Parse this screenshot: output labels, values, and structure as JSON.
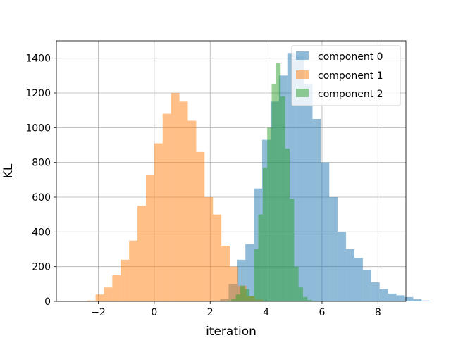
{
  "chart_data": {
    "type": "histogram",
    "title": "",
    "xlabel": "iteration",
    "ylabel": "KL",
    "xlim": [
      -3.5,
      9.0
    ],
    "ylim": [
      0,
      1500
    ],
    "grid": true,
    "legend_position": "top-right",
    "xticks": [
      -2,
      0,
      2,
      4,
      6,
      8
    ],
    "xtick_labels": [
      "−2",
      "0",
      "2",
      "4",
      "6",
      "8"
    ],
    "yticks": [
      0,
      200,
      400,
      600,
      800,
      1000,
      1200,
      1400
    ],
    "ytick_labels": [
      "0",
      "200",
      "400",
      "600",
      "800",
      "1000",
      "1200",
      "1400"
    ],
    "series": [
      {
        "name": "component 0",
        "color": "#1f77b4",
        "alpha": 0.5,
        "bin_start": 2.06,
        "bin_width": 0.3,
        "counts": [
          5,
          15,
          100,
          240,
          330,
          650,
          930,
          1150,
          1300,
          1430,
          1410,
          1250,
          1050,
          800,
          600,
          400,
          300,
          250,
          180,
          110,
          70,
          45,
          35,
          25,
          12,
          5
        ]
      },
      {
        "name": "component 1",
        "color": "#ff7f0e",
        "alpha": 0.5,
        "bin_start": -2.4,
        "bin_width": 0.3,
        "counts": [
          5,
          40,
          80,
          150,
          240,
          350,
          550,
          730,
          910,
          1080,
          1200,
          1150,
          1040,
          860,
          600,
          500,
          320,
          200,
          90,
          30,
          10
        ]
      },
      {
        "name": "component 2",
        "color": "#2ca02c",
        "alpha": 0.5,
        "bin_start": 2.6,
        "bin_width": 0.16,
        "counts": [
          5,
          15,
          40,
          90,
          70,
          30,
          300,
          500,
          770,
          1000,
          1250,
          1370,
          1180,
          880,
          590,
          200,
          80,
          25,
          8,
          3,
          1
        ]
      }
    ]
  }
}
